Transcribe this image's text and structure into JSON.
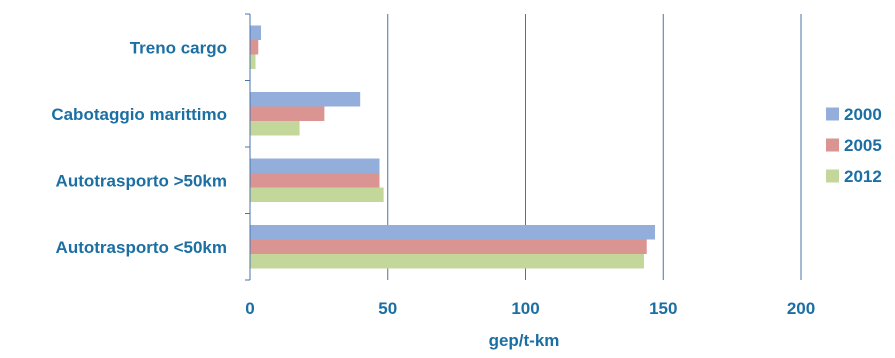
{
  "chart_data": {
    "type": "bar",
    "orientation": "horizontal",
    "categories": [
      "Treno cargo",
      "Cabotaggio marittimo",
      "Autotrasporto >50km",
      "Autotrasporto <50km"
    ],
    "series": [
      {
        "name": "2000",
        "color": "#94aedb",
        "values": [
          4,
          40,
          47,
          147
        ]
      },
      {
        "name": "2005",
        "color": "#da9593",
        "values": [
          3,
          27,
          47,
          144
        ]
      },
      {
        "name": "2012",
        "color": "#c4d79b",
        "values": [
          2,
          18,
          48.5,
          143
        ]
      }
    ],
    "xlabel": "gep/t-km",
    "xlim": [
      0,
      200
    ],
    "xticks": [
      0,
      50,
      100,
      150,
      200
    ],
    "grid": "vertical",
    "legend_position": "right",
    "text_color": "#1b6fa3",
    "grid_color": "#4a74a8"
  }
}
